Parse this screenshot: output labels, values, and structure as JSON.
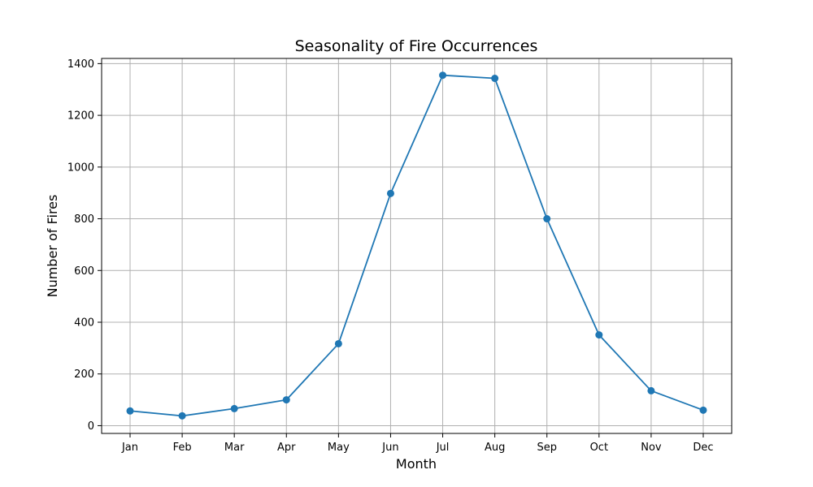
{
  "chart_data": {
    "type": "line",
    "title": "Seasonality of Fire Occurrences",
    "xlabel": "Month",
    "ylabel": "Number of Fires",
    "categories": [
      "Jan",
      "Feb",
      "Mar",
      "Apr",
      "May",
      "Jun",
      "Jul",
      "Aug",
      "Sep",
      "Oct",
      "Nov",
      "Dec"
    ],
    "series": [
      {
        "values": [
          57,
          38,
          66,
          100,
          317,
          898,
          1355,
          1343,
          800,
          351,
          135,
          60
        ],
        "color": "#1f77b4"
      }
    ],
    "ylim": [
      -30,
      1420
    ],
    "yticks": [
      0,
      200,
      400,
      600,
      800,
      1000,
      1200,
      1400
    ],
    "grid": true,
    "marker": "circle"
  }
}
